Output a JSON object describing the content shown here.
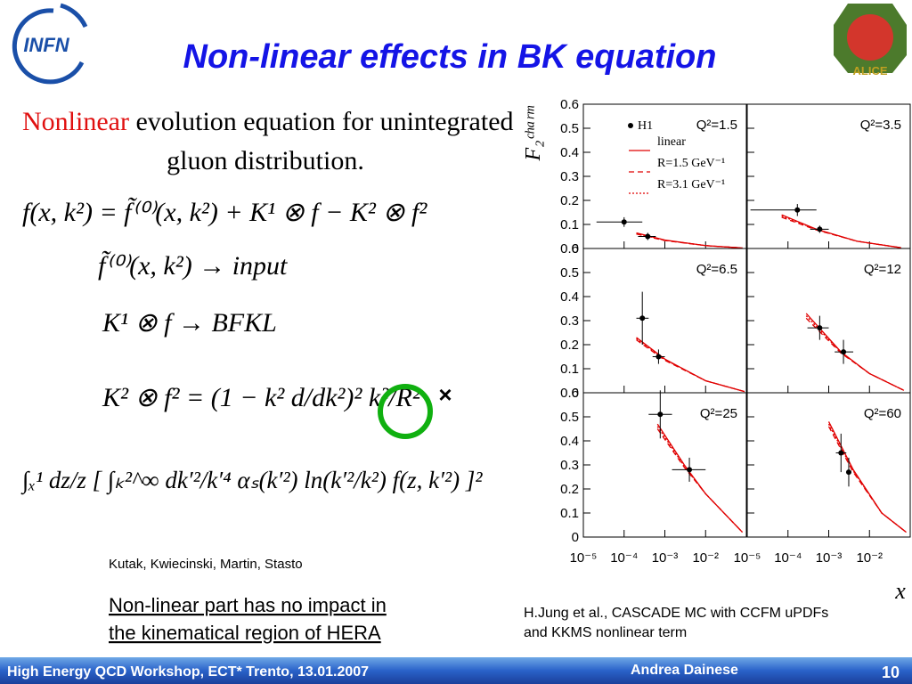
{
  "header": {
    "title": "Non-linear effects in BK equation",
    "left_logo": "INFN",
    "right_logo": "ALICE"
  },
  "intro": {
    "highlight": "Nonlinear",
    "rest": "evolution equation for unintegrated",
    "line2": "gluon distribution."
  },
  "equations": [
    "f(x, k²) = f̃⁽⁰⁾(x, k²) + K¹ ⊗ f − K² ⊗ f²",
    "f̃⁽⁰⁾(x, k²) → input",
    "K¹ ⊗ f → BFKL",
    "K² ⊗ f² = (1 − k² d/dk²)² k²/R²",
    "∫ₓ¹ dz/z [ ∫ₖ²^∞ dk′²/k′⁴ αₛ(k′²) ln(k′²/k²) f(z, k′²) ]²"
  ],
  "cross_mark": "×",
  "authors": "Kutak, Kwiecinski, Martin, Stasto",
  "conclusion": [
    "Non-linear part has no impact in",
    "the kinematical region of HERA"
  ],
  "reference": [
    "H.Jung et al., CASCADE MC with CCFM uPDFs",
    "and KKMS nonlinear term"
  ],
  "figure": {
    "y_label": "F₂ᶜʰᵃʳᵐ",
    "x_label": "x",
    "log_x": true,
    "xlim": [
      1e-05,
      0.1
    ],
    "xticks": [
      {
        "value": 1e-05,
        "label": "10⁻⁵"
      },
      {
        "value": 0.0001,
        "label": "10⁻⁴"
      },
      {
        "value": 0.001,
        "label": "10⁻³"
      },
      {
        "value": 0.01,
        "label": "10⁻²"
      }
    ],
    "ylim": [
      0,
      0.6
    ],
    "yticks": [
      0,
      0.1,
      0.2,
      0.3,
      0.4,
      0.5,
      0.6
    ],
    "legend": [
      {
        "name": "H1",
        "color": "#000000",
        "style": "marker"
      },
      {
        "name": "linear",
        "color": "#e00000",
        "style": "solid"
      },
      {
        "name": "R=1.5 GeV⁻¹",
        "color": "#e00000",
        "style": "dashed"
      },
      {
        "name": "R=3.1 GeV⁻¹",
        "color": "#e00000",
        "style": "dotted"
      }
    ],
    "panels": [
      {
        "label": "Q²=1.5",
        "points": {
          "x": [
            0.0001,
            0.00038
          ],
          "y": [
            0.11,
            0.05
          ],
          "yerr": [
            0.02,
            0.015
          ],
          "xlo": [
            2.1e-05,
            0.00022
          ],
          "xhi": [
            0.00028,
            0.0006
          ]
        },
        "curve_x": [
          0.0002,
          0.001,
          0.01,
          0.08
        ],
        "curves": [
          [
            0.065,
            0.035,
            0.012,
            0.002
          ],
          [
            0.06,
            0.033,
            0.012,
            0.002
          ],
          [
            0.062,
            0.034,
            0.012,
            0.002
          ]
        ]
      },
      {
        "label": "Q²=3.5",
        "points": {
          "x": [
            0.00017,
            0.0006
          ],
          "y": [
            0.16,
            0.08
          ],
          "yerr": [
            0.025,
            0.015
          ],
          "xlo": [
            1.2e-05,
            0.00035
          ],
          "xhi": [
            0.0005,
            0.001
          ]
        },
        "curve_x": [
          7e-05,
          0.0005,
          0.005,
          0.06
        ],
        "curves": [
          [
            0.14,
            0.08,
            0.03,
            0.003
          ],
          [
            0.13,
            0.077,
            0.03,
            0.003
          ],
          [
            0.135,
            0.079,
            0.03,
            0.003
          ]
        ]
      },
      {
        "label": "Q²=6.5",
        "points": {
          "x": [
            0.00028,
            0.0007
          ],
          "y": [
            0.31,
            0.15
          ],
          "yerr": [
            0.11,
            0.03
          ],
          "xlo": [
            0.0002,
            0.0005
          ],
          "xhi": [
            0.0004,
            0.001
          ]
        },
        "curve_x": [
          0.0002,
          0.001,
          0.01,
          0.09
        ],
        "curves": [
          [
            0.23,
            0.14,
            0.05,
            0.005
          ],
          [
            0.22,
            0.135,
            0.05,
            0.005
          ],
          [
            0.225,
            0.138,
            0.05,
            0.005
          ]
        ]
      },
      {
        "label": "Q²=12",
        "points": {
          "x": [
            0.0006,
            0.0023
          ],
          "y": [
            0.27,
            0.17
          ],
          "yerr": [
            0.05,
            0.05
          ],
          "xlo": [
            0.0003,
            0.0014
          ],
          "xhi": [
            0.001,
            0.004
          ]
        },
        "curve_x": [
          0.00028,
          0.002,
          0.01,
          0.07
        ],
        "curves": [
          [
            0.33,
            0.17,
            0.08,
            0.01
          ],
          [
            0.31,
            0.165,
            0.08,
            0.01
          ],
          [
            0.32,
            0.168,
            0.08,
            0.01
          ]
        ]
      },
      {
        "label": "Q²=25",
        "points": {
          "x": [
            0.00077,
            0.004
          ],
          "y": [
            0.51,
            0.28
          ],
          "yerr": [
            0.1,
            0.05
          ],
          "xlo": [
            0.0004,
            0.0015
          ],
          "xhi": [
            0.0015,
            0.01
          ]
        },
        "curve_x": [
          0.00066,
          0.003,
          0.01,
          0.08
        ],
        "curves": [
          [
            0.47,
            0.3,
            0.18,
            0.02
          ],
          [
            0.45,
            0.29,
            0.18,
            0.02
          ],
          [
            0.46,
            0.295,
            0.18,
            0.02
          ]
        ]
      },
      {
        "label": "Q²=60",
        "points": {
          "x": [
            0.002,
            0.0031
          ],
          "y": [
            0.35,
            0.27
          ],
          "yerr": [
            0.08,
            0.06
          ],
          "xlo": [
            0.0015,
            0.0027
          ],
          "xhi": [
            0.0027,
            0.0036
          ]
        },
        "curve_x": [
          0.001,
          0.004,
          0.02,
          0.08
        ],
        "curves": [
          [
            0.48,
            0.28,
            0.1,
            0.02
          ],
          [
            0.46,
            0.27,
            0.1,
            0.02
          ],
          [
            0.47,
            0.275,
            0.1,
            0.02
          ]
        ]
      }
    ]
  },
  "footer": {
    "event": "High Energy QCD Workshop, ECT* Trento, 13.01.2007",
    "author": "Andrea Dainese",
    "page": "10"
  }
}
